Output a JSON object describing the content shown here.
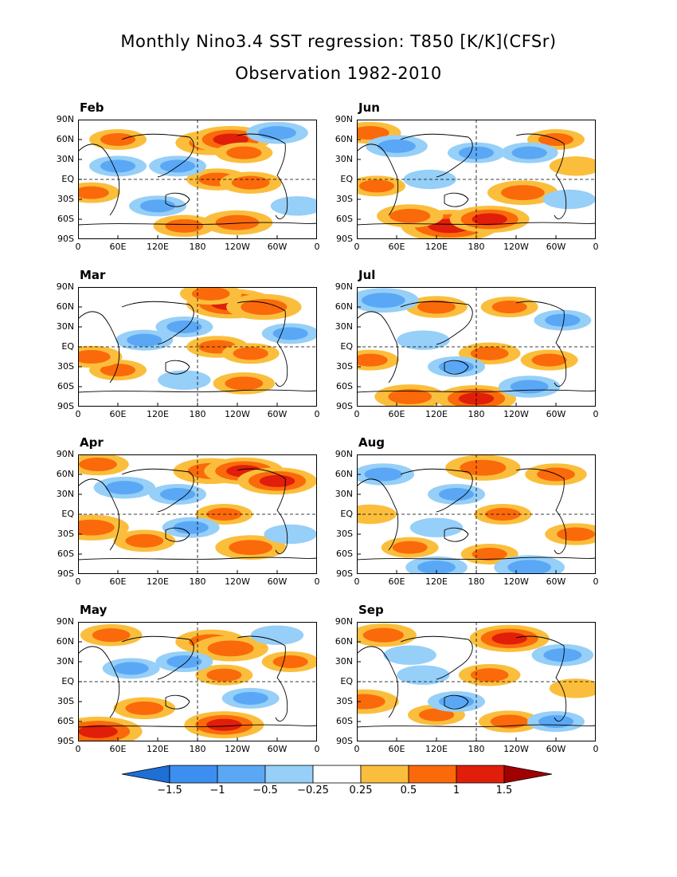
{
  "chart_data": {
    "type": "heatmap",
    "title": "Monthly Nino3.4 SST regression: T850 [K/K](CFSr)",
    "subtitle": "Observation 1982-2010",
    "x_ticks": [
      "0",
      "60E",
      "120E",
      "180",
      "120W",
      "60W",
      "0"
    ],
    "y_ticks": [
      "90N",
      "60N",
      "30N",
      "EQ",
      "30S",
      "60S",
      "90S"
    ],
    "xlim": [
      0,
      360
    ],
    "ylim": [
      -90,
      90
    ],
    "colorbar": {
      "levels": [
        -1.5,
        -1,
        -0.5,
        -0.25,
        0.25,
        0.5,
        1,
        1.5
      ],
      "labels": [
        "-1.5",
        "-1",
        "-0.5",
        "-0.25",
        "0.25",
        "0.5",
        "1",
        "1.5"
      ],
      "colors": [
        "#1e6fd6",
        "#3c8ff0",
        "#5aa8f5",
        "#96cff8",
        "#ffffff",
        "#fbbe3c",
        "#fa6a0a",
        "#e01e0a",
        "#a00000"
      ]
    },
    "panels": [
      {
        "label": "Feb",
        "features": [
          {
            "lon": 200,
            "lat": 55,
            "v": 0.8
          },
          {
            "lon": 230,
            "lat": 60,
            "v": 1.0
          },
          {
            "lon": 250,
            "lat": 40,
            "v": 0.5
          },
          {
            "lon": 210,
            "lat": 0,
            "v": 0.6
          },
          {
            "lon": 260,
            "lat": -5,
            "v": 0.6
          },
          {
            "lon": 240,
            "lat": -65,
            "v": 0.8
          },
          {
            "lon": 160,
            "lat": -70,
            "v": 0.6
          },
          {
            "lon": 60,
            "lat": 20,
            "v": -0.5
          },
          {
            "lon": 150,
            "lat": 20,
            "v": -0.5
          },
          {
            "lon": 20,
            "lat": -20,
            "v": 0.5
          },
          {
            "lon": 60,
            "lat": 60,
            "v": 0.5
          },
          {
            "lon": 300,
            "lat": 70,
            "v": -0.6
          },
          {
            "lon": 120,
            "lat": -40,
            "v": -0.5
          },
          {
            "lon": 330,
            "lat": -40,
            "v": -0.4
          }
        ]
      },
      {
        "label": "Jun",
        "features": [
          {
            "lon": 140,
            "lat": -70,
            "v": 1.4
          },
          {
            "lon": 200,
            "lat": -60,
            "v": 1.0
          },
          {
            "lon": 250,
            "lat": -20,
            "v": 0.8
          },
          {
            "lon": 80,
            "lat": -55,
            "v": 0.7
          },
          {
            "lon": 20,
            "lat": 70,
            "v": 0.6
          },
          {
            "lon": 300,
            "lat": 60,
            "v": 0.5
          },
          {
            "lon": 60,
            "lat": 50,
            "v": -0.6
          },
          {
            "lon": 180,
            "lat": 40,
            "v": -0.5
          },
          {
            "lon": 260,
            "lat": 40,
            "v": -0.5
          },
          {
            "lon": 110,
            "lat": 0,
            "v": -0.4
          },
          {
            "lon": 320,
            "lat": -30,
            "v": -0.4
          },
          {
            "lon": 30,
            "lat": -10,
            "v": 0.5
          },
          {
            "lon": 330,
            "lat": 20,
            "v": 0.4
          }
        ]
      },
      {
        "label": "Mar",
        "features": [
          {
            "lon": 230,
            "lat": 65,
            "v": 1.2
          },
          {
            "lon": 280,
            "lat": 60,
            "v": 0.9
          },
          {
            "lon": 200,
            "lat": 80,
            "v": 0.6
          },
          {
            "lon": 210,
            "lat": 0,
            "v": 0.6
          },
          {
            "lon": 260,
            "lat": -10,
            "v": 0.5
          },
          {
            "lon": 250,
            "lat": -55,
            "v": 0.6
          },
          {
            "lon": 60,
            "lat": -35,
            "v": 0.5
          },
          {
            "lon": 20,
            "lat": -15,
            "v": 0.6
          },
          {
            "lon": 100,
            "lat": 10,
            "v": -0.5
          },
          {
            "lon": 160,
            "lat": 30,
            "v": -0.5
          },
          {
            "lon": 320,
            "lat": 20,
            "v": -0.5
          },
          {
            "lon": 160,
            "lat": -50,
            "v": -0.4
          }
        ]
      },
      {
        "label": "Jul",
        "features": [
          {
            "lon": 80,
            "lat": -75,
            "v": 0.8
          },
          {
            "lon": 180,
            "lat": -78,
            "v": 1.0
          },
          {
            "lon": 200,
            "lat": -10,
            "v": 0.6
          },
          {
            "lon": 290,
            "lat": -20,
            "v": 0.5
          },
          {
            "lon": 120,
            "lat": 60,
            "v": 0.6
          },
          {
            "lon": 230,
            "lat": 60,
            "v": 0.5
          },
          {
            "lon": 40,
            "lat": 70,
            "v": -0.8
          },
          {
            "lon": 310,
            "lat": 40,
            "v": -0.5
          },
          {
            "lon": 150,
            "lat": -30,
            "v": -0.5
          },
          {
            "lon": 260,
            "lat": -60,
            "v": -0.6
          },
          {
            "lon": 20,
            "lat": -20,
            "v": 0.5
          },
          {
            "lon": 100,
            "lat": 10,
            "v": -0.4
          }
        ]
      },
      {
        "label": "Apr",
        "features": [
          {
            "lon": 200,
            "lat": 65,
            "v": 0.9
          },
          {
            "lon": 250,
            "lat": 65,
            "v": 1.0
          },
          {
            "lon": 300,
            "lat": 50,
            "v": 1.0
          },
          {
            "lon": 20,
            "lat": -20,
            "v": 0.9
          },
          {
            "lon": 30,
            "lat": 75,
            "v": 0.6
          },
          {
            "lon": 100,
            "lat": -40,
            "v": 0.6
          },
          {
            "lon": 260,
            "lat": -50,
            "v": 0.8
          },
          {
            "lon": 220,
            "lat": 0,
            "v": 0.5
          },
          {
            "lon": 70,
            "lat": 40,
            "v": -0.6
          },
          {
            "lon": 150,
            "lat": 30,
            "v": -0.5
          },
          {
            "lon": 170,
            "lat": -20,
            "v": -0.5
          },
          {
            "lon": 320,
            "lat": -30,
            "v": -0.4
          }
        ]
      },
      {
        "label": "Aug",
        "features": [
          {
            "lon": 190,
            "lat": 70,
            "v": 0.9
          },
          {
            "lon": 300,
            "lat": 60,
            "v": 0.6
          },
          {
            "lon": 220,
            "lat": 0,
            "v": 0.5
          },
          {
            "lon": 330,
            "lat": -30,
            "v": 0.6
          },
          {
            "lon": 80,
            "lat": -50,
            "v": 0.5
          },
          {
            "lon": 200,
            "lat": -60,
            "v": 0.5
          },
          {
            "lon": 40,
            "lat": 60,
            "v": -0.6
          },
          {
            "lon": 150,
            "lat": 30,
            "v": -0.5
          },
          {
            "lon": 120,
            "lat": -80,
            "v": -0.6
          },
          {
            "lon": 260,
            "lat": -80,
            "v": -0.8
          },
          {
            "lon": 120,
            "lat": -20,
            "v": -0.4
          },
          {
            "lon": 20,
            "lat": 0,
            "v": 0.4
          }
        ]
      },
      {
        "label": "May",
        "features": [
          {
            "lon": 30,
            "lat": -75,
            "v": 1.2
          },
          {
            "lon": 220,
            "lat": -65,
            "v": 1.0
          },
          {
            "lon": 200,
            "lat": 60,
            "v": 0.8
          },
          {
            "lon": 230,
            "lat": 50,
            "v": 0.9
          },
          {
            "lon": 50,
            "lat": 70,
            "v": 0.6
          },
          {
            "lon": 100,
            "lat": -40,
            "v": 0.6
          },
          {
            "lon": 320,
            "lat": 30,
            "v": 0.5
          },
          {
            "lon": 220,
            "lat": 10,
            "v": 0.5
          },
          {
            "lon": 80,
            "lat": 20,
            "v": -0.5
          },
          {
            "lon": 160,
            "lat": 30,
            "v": -0.5
          },
          {
            "lon": 260,
            "lat": -25,
            "v": -0.5
          },
          {
            "lon": 300,
            "lat": 70,
            "v": -0.4
          }
        ]
      },
      {
        "label": "Sep",
        "features": [
          {
            "lon": 230,
            "lat": 65,
            "v": 1.0
          },
          {
            "lon": 40,
            "lat": 70,
            "v": 0.7
          },
          {
            "lon": 200,
            "lat": 10,
            "v": 0.6
          },
          {
            "lon": 10,
            "lat": -30,
            "v": 0.8
          },
          {
            "lon": 120,
            "lat": -50,
            "v": 0.5
          },
          {
            "lon": 230,
            "lat": -60,
            "v": 0.6
          },
          {
            "lon": 310,
            "lat": 40,
            "v": -0.6
          },
          {
            "lon": 100,
            "lat": 10,
            "v": -0.4
          },
          {
            "lon": 150,
            "lat": -30,
            "v": -0.5
          },
          {
            "lon": 300,
            "lat": -60,
            "v": -0.5
          },
          {
            "lon": 80,
            "lat": 40,
            "v": -0.4
          },
          {
            "lon": 330,
            "lat": -10,
            "v": 0.4
          }
        ]
      }
    ]
  }
}
